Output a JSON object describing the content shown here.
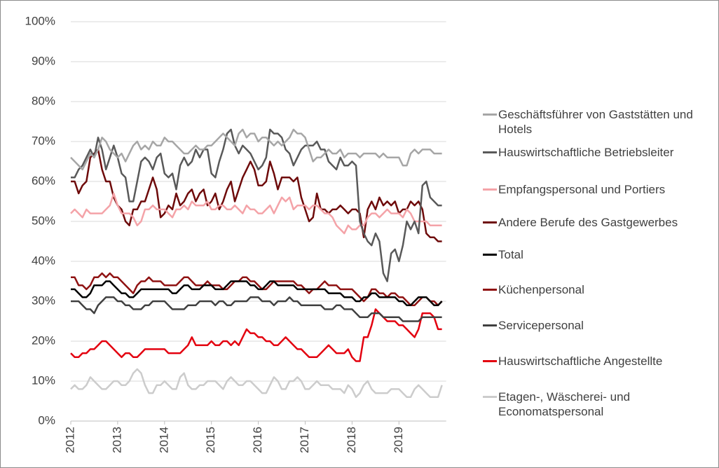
{
  "chart_data": {
    "type": "line",
    "categories": [
      "2012",
      null,
      null,
      null,
      null,
      null,
      null,
      null,
      null,
      null,
      null,
      null,
      "2013",
      null,
      null,
      null,
      null,
      null,
      null,
      null,
      null,
      null,
      null,
      null,
      "2014",
      null,
      null,
      null,
      null,
      null,
      null,
      null,
      null,
      null,
      null,
      null,
      "2015",
      null,
      null,
      null,
      null,
      null,
      null,
      null,
      null,
      null,
      null,
      null,
      "2016",
      null,
      null,
      null,
      null,
      null,
      null,
      null,
      null,
      null,
      null,
      null,
      "2017",
      null,
      null,
      null,
      null,
      null,
      null,
      null,
      null,
      null,
      null,
      null,
      "2018",
      null,
      null,
      null,
      null,
      null,
      null,
      null,
      null,
      null,
      null,
      null,
      "2019",
      null,
      null,
      null,
      null,
      null,
      null,
      null,
      null,
      null,
      null,
      null
    ],
    "ylim": [
      0,
      100
    ],
    "yticks": [
      {
        "value": 0,
        "label": "0%"
      },
      {
        "value": 10,
        "label": "10%"
      },
      {
        "value": 20,
        "label": "20%"
      },
      {
        "value": 30,
        "label": "30%"
      },
      {
        "value": 40,
        "label": "40%"
      },
      {
        "value": 50,
        "label": "50%"
      },
      {
        "value": 60,
        "label": "60%"
      },
      {
        "value": 70,
        "label": "70%"
      },
      {
        "value": 80,
        "label": "80%"
      },
      {
        "value": 90,
        "label": "90%"
      },
      {
        "value": 100,
        "label": "100%"
      }
    ],
    "grid": true,
    "legend": "right",
    "series": [
      {
        "name": "Geschäftsführer von Gaststätten und Hotels",
        "color": "#a6a6a6",
        "values": [
          66,
          65,
          64,
          63,
          65,
          67,
          66,
          68,
          71,
          70,
          68,
          67,
          66,
          67,
          65,
          67,
          69,
          70,
          68,
          69,
          68,
          70,
          69,
          69,
          71,
          70,
          70,
          69,
          68,
          67,
          67,
          68,
          69,
          68,
          68,
          69,
          69,
          70,
          71,
          72,
          71,
          70,
          69,
          72,
          73,
          71,
          72,
          72,
          70,
          71,
          71,
          70,
          69,
          70,
          69,
          70,
          71,
          73,
          72,
          72,
          71,
          68,
          65,
          66,
          66,
          67,
          68,
          67,
          67,
          68,
          66,
          67,
          67,
          67,
          66,
          67,
          67,
          67,
          67,
          66,
          67,
          66,
          66,
          66,
          66,
          64,
          64,
          67,
          68,
          67,
          68,
          68,
          68,
          67,
          67,
          67
        ]
      },
      {
        "name": "Hauswirtschaftliche Betriebsleiter",
        "color": "#595959",
        "values": [
          61,
          61,
          63,
          64,
          66,
          68,
          66,
          71,
          68,
          63,
          66,
          69,
          66,
          62,
          61,
          55,
          55,
          60,
          65,
          66,
          65,
          63,
          66,
          67,
          62,
          61,
          62,
          58,
          64,
          66,
          64,
          65,
          68,
          66,
          68,
          68,
          62,
          61,
          65,
          68,
          72,
          73,
          69,
          67,
          69,
          68,
          67,
          65,
          63,
          64,
          66,
          73,
          72,
          72,
          71,
          68,
          67,
          64,
          66,
          68,
          69,
          69,
          69,
          70,
          68,
          68,
          65,
          64,
          63,
          66,
          64,
          64,
          65,
          64,
          50,
          47,
          45,
          44,
          47,
          45,
          37,
          35,
          42,
          43,
          40,
          44,
          50,
          48,
          50,
          47,
          59,
          60,
          56,
          55,
          54,
          54
        ]
      },
      {
        "name": "Empfangspersonal und Portiers",
        "color": "#f4a3a8",
        "values": [
          52,
          53,
          52,
          51,
          53,
          52,
          52,
          52,
          52,
          53,
          54,
          57,
          54,
          52,
          52,
          52,
          51,
          49,
          50,
          53,
          53,
          54,
          53,
          53,
          53,
          52,
          51,
          53,
          53,
          54,
          53,
          55,
          54,
          54,
          54,
          55,
          53,
          53,
          54,
          54,
          53,
          53,
          54,
          53,
          52,
          54,
          53,
          53,
          52,
          52,
          53,
          54,
          52,
          54,
          56,
          55,
          56,
          53,
          54,
          54,
          54,
          53,
          54,
          54,
          53,
          52,
          52,
          51,
          49,
          48,
          47,
          49,
          48,
          48,
          49,
          49,
          51,
          52,
          52,
          51,
          52,
          53,
          52,
          52,
          52,
          51,
          53,
          52,
          50,
          50,
          50,
          50,
          49,
          49,
          49,
          49
        ]
      },
      {
        "name": "Andere Berufe des Gastgewerbes",
        "color": "#6e0a0a",
        "values": [
          60,
          60,
          57,
          59,
          60,
          66,
          67,
          68,
          63,
          60,
          60,
          56,
          54,
          53,
          50,
          49,
          53,
          53,
          55,
          55,
          58,
          61,
          58,
          51,
          52,
          54,
          53,
          57,
          54,
          55,
          57,
          58,
          55,
          57,
          58,
          54,
          55,
          57,
          53,
          55,
          58,
          60,
          55,
          58,
          61,
          63,
          65,
          63,
          59,
          59,
          60,
          65,
          62,
          58,
          61,
          61,
          61,
          60,
          61,
          56,
          53,
          50,
          51,
          57,
          53,
          53,
          52,
          53,
          53,
          54,
          53,
          52,
          53,
          53,
          52,
          46,
          53,
          55,
          53,
          56,
          54,
          55,
          54,
          55,
          52,
          53,
          53,
          55,
          54,
          55,
          53,
          47,
          46,
          46,
          45,
          45
        ]
      },
      {
        "name": "Total",
        "color": "#000000",
        "values": [
          33,
          33,
          32,
          31,
          31,
          32,
          34,
          34,
          34,
          35,
          35,
          34,
          33,
          32,
          32,
          31,
          31,
          32,
          33,
          33,
          33,
          33,
          33,
          33,
          33,
          33,
          32,
          32,
          33,
          34,
          34,
          33,
          33,
          33,
          34,
          34,
          34,
          33,
          33,
          33,
          34,
          35,
          35,
          35,
          35,
          35,
          34,
          34,
          33,
          33,
          34,
          35,
          35,
          34,
          34,
          34,
          34,
          34,
          33,
          33,
          33,
          33,
          33,
          33,
          33,
          33,
          32,
          32,
          32,
          32,
          31,
          31,
          31,
          30,
          30,
          31,
          31,
          32,
          32,
          31,
          31,
          31,
          31,
          31,
          30,
          30,
          29,
          29,
          30,
          31,
          31,
          31,
          30,
          29,
          29,
          30
        ]
      },
      {
        "name": "Küchenpersonal",
        "color": "#8f1212",
        "values": [
          36,
          36,
          34,
          34,
          33,
          34,
          36,
          36,
          37,
          36,
          37,
          36,
          36,
          35,
          34,
          33,
          32,
          34,
          35,
          35,
          36,
          35,
          35,
          35,
          34,
          34,
          34,
          34,
          35,
          36,
          36,
          35,
          34,
          34,
          34,
          35,
          34,
          34,
          34,
          33,
          33,
          34,
          35,
          35,
          36,
          36,
          35,
          35,
          34,
          33,
          33,
          34,
          35,
          35,
          35,
          35,
          35,
          35,
          34,
          34,
          33,
          32,
          33,
          33,
          34,
          35,
          34,
          34,
          34,
          33,
          33,
          33,
          33,
          32,
          31,
          30,
          31,
          33,
          33,
          32,
          32,
          31,
          32,
          32,
          31,
          31,
          30,
          29,
          29,
          30,
          31,
          31,
          30,
          30,
          29,
          30
        ]
      },
      {
        "name": "Servicepersonal",
        "color": "#404040",
        "values": [
          30,
          30,
          30,
          29,
          28,
          28,
          27,
          29,
          30,
          31,
          31,
          31,
          30,
          30,
          29,
          29,
          28,
          28,
          28,
          29,
          29,
          30,
          30,
          30,
          30,
          29,
          28,
          28,
          28,
          28,
          29,
          29,
          29,
          30,
          30,
          30,
          30,
          29,
          30,
          30,
          29,
          29,
          30,
          30,
          30,
          30,
          31,
          31,
          31,
          30,
          30,
          30,
          29,
          30,
          30,
          30,
          31,
          30,
          30,
          29,
          29,
          29,
          29,
          29,
          29,
          28,
          28,
          28,
          29,
          29,
          28,
          28,
          28,
          27,
          26,
          26,
          26,
          27,
          27,
          27,
          26,
          26,
          26,
          26,
          26,
          25,
          25,
          25,
          25,
          25,
          26,
          26,
          26,
          26,
          26,
          26
        ]
      },
      {
        "name": "Hauswirtschaftliche Angestellte",
        "color": "#e3000f",
        "values": [
          17,
          16,
          16,
          17,
          17,
          18,
          18,
          19,
          20,
          20,
          19,
          18,
          17,
          16,
          17,
          17,
          16,
          16,
          17,
          18,
          18,
          18,
          18,
          18,
          18,
          17,
          17,
          17,
          17,
          18,
          19,
          21,
          19,
          19,
          19,
          19,
          20,
          19,
          19,
          20,
          20,
          19,
          20,
          19,
          21,
          23,
          22,
          22,
          21,
          21,
          20,
          20,
          19,
          19,
          20,
          21,
          20,
          19,
          18,
          18,
          17,
          16,
          16,
          16,
          17,
          18,
          19,
          18,
          17,
          17,
          17,
          18,
          16,
          15,
          15,
          21,
          21,
          24,
          28,
          27,
          26,
          25,
          25,
          25,
          24,
          24,
          23,
          22,
          21,
          23,
          27,
          27,
          27,
          26,
          23,
          23
        ]
      },
      {
        "name": "Etagen-, Wäscherei- und Economatspersonal",
        "color": "#cccccc",
        "values": [
          8,
          9,
          8,
          8,
          9,
          11,
          10,
          9,
          8,
          8,
          9,
          10,
          10,
          9,
          9,
          10,
          12,
          13,
          12,
          9,
          7,
          7,
          9,
          9,
          10,
          9,
          8,
          8,
          11,
          12,
          9,
          8,
          8,
          9,
          9,
          10,
          10,
          10,
          9,
          8,
          10,
          11,
          10,
          9,
          9,
          10,
          10,
          9,
          8,
          7,
          7,
          9,
          11,
          10,
          8,
          8,
          10,
          10,
          11,
          10,
          8,
          8,
          9,
          10,
          9,
          9,
          9,
          8,
          8,
          8,
          7,
          9,
          8,
          6,
          7,
          9,
          10,
          8,
          7,
          7,
          7,
          7,
          8,
          8,
          8,
          7,
          6,
          6,
          8,
          9,
          8,
          7,
          6,
          6,
          6,
          9
        ]
      }
    ]
  }
}
